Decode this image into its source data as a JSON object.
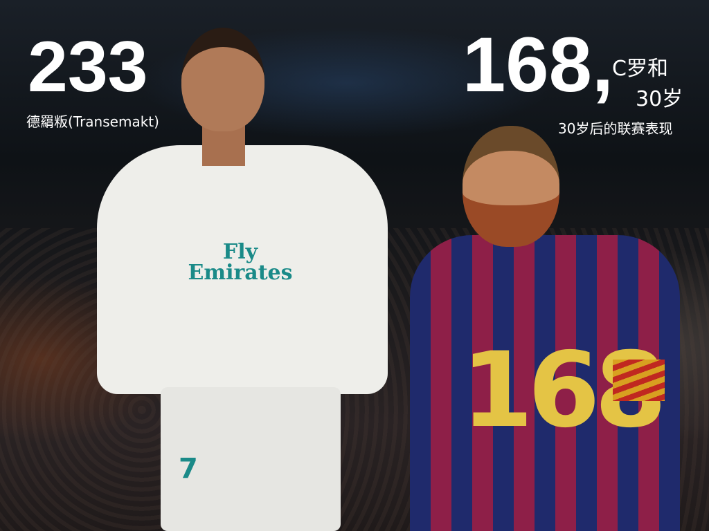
{
  "left_stat": {
    "number": "233",
    "caption": "德羂粄(Transemakt)"
  },
  "right_stat": {
    "number": "168,",
    "label_line1": "C罗和",
    "label_line2": "30岁",
    "caption": "30岁后的联赛表现"
  },
  "jerseys": {
    "left_sponsor": "Fly Emirates",
    "left_number": "7",
    "right_number": "168"
  },
  "colors": {
    "real_madrid_teal": "#1a8a88",
    "barca_blue": "#1f2a6c",
    "barca_red": "#8e1f48",
    "number_gold": "#e4c445"
  }
}
